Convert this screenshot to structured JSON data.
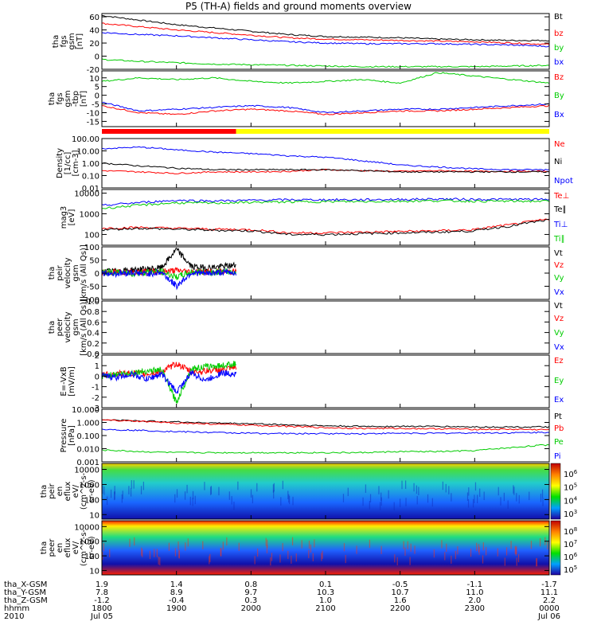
{
  "title": "P5 (TH-A) fields and ground moments overview",
  "chart_data": [
    {
      "type": "line",
      "panel": "fgs_gsm",
      "ylabel": [
        "tha",
        "fgs",
        "gsm",
        "[nT]"
      ],
      "yticks": [
        "60",
        "40",
        "20",
        "0",
        "-20"
      ],
      "ylim": [
        -20,
        65
      ],
      "x": [
        18.0,
        18.5,
        19.0,
        19.5,
        20.0,
        20.5,
        21.0,
        21.5,
        22.0,
        22.5,
        23.0,
        23.5,
        24.0
      ],
      "series": [
        {
          "name": "Bt",
          "color": "#000000",
          "values": [
            62,
            55,
            48,
            43,
            38,
            33,
            30,
            29,
            28,
            26,
            25,
            24,
            24
          ]
        },
        {
          "name": "bz",
          "color": "#ff0000",
          "values": [
            50,
            45,
            40,
            36,
            32,
            28,
            26,
            25,
            24,
            23,
            22,
            20,
            18
          ]
        },
        {
          "name": "by",
          "color": "#00cc00",
          "values": [
            -5,
            -8,
            -10,
            -12,
            -13,
            -14,
            -15,
            -16,
            -16,
            -16,
            -16,
            -15,
            -14
          ]
        },
        {
          "name": "bx",
          "color": "#0000ff",
          "values": [
            36,
            33,
            31,
            28,
            25,
            22,
            20,
            19,
            19,
            19,
            18,
            17,
            15
          ]
        }
      ]
    },
    {
      "type": "line",
      "panel": "fgs_gsm_tbp",
      "ylabel": [
        "tha",
        "fgs",
        "gsm",
        "-tbp",
        "[nT]"
      ],
      "yticks": [
        "10",
        "5",
        "0",
        "-5",
        "-10",
        "-15"
      ],
      "ylim": [
        -18,
        14
      ],
      "x": [
        18.0,
        18.5,
        19.0,
        19.5,
        20.0,
        20.5,
        21.0,
        21.5,
        22.0,
        22.5,
        23.0,
        23.5,
        24.0
      ],
      "series": [
        {
          "name": "Bz",
          "color": "#ff0000",
          "values": [
            -6,
            -10,
            -11,
            -9,
            -8,
            -9,
            -11,
            -10,
            -9,
            -9,
            -8,
            -7,
            -6
          ]
        },
        {
          "name": "By",
          "color": "#00cc00",
          "values": [
            8,
            10,
            9,
            10,
            8,
            7,
            8,
            9,
            7,
            13,
            11,
            9,
            7
          ]
        },
        {
          "name": "Bx",
          "color": "#0000ff",
          "values": [
            -4,
            -9,
            -8,
            -7,
            -6,
            -7,
            -10,
            -9,
            -8,
            -8,
            -7,
            -6,
            -5
          ]
        }
      ]
    },
    {
      "type": "line",
      "panel": "density",
      "yscale": "log",
      "ylabel": [
        "Density",
        "[1/cc]",
        "[cm-3]"
      ],
      "yticks": [
        "100.00",
        "10.00",
        "1.00",
        "0.10",
        "0.01"
      ],
      "ylim": [
        0.01,
        100
      ],
      "x": [
        18.0,
        18.5,
        19.0,
        19.5,
        20.0,
        20.5,
        21.0,
        21.5,
        22.0,
        22.5,
        23.0,
        23.5,
        24.0
      ],
      "series": [
        {
          "name": "Ne",
          "color": "#ff0000",
          "values": [
            0.25,
            0.2,
            0.15,
            0.2,
            0.2,
            0.22,
            0.3,
            0.25,
            0.22,
            0.25,
            0.22,
            0.22,
            0.22
          ]
        },
        {
          "name": "Ni",
          "color": "#000000",
          "values": [
            1.0,
            0.6,
            0.4,
            0.3,
            0.3,
            0.3,
            0.3,
            0.25,
            0.2,
            0.2,
            0.2,
            0.2,
            0.2
          ]
        },
        {
          "name": "Npot",
          "color": "#0000ff",
          "values": [
            15,
            20,
            12,
            8,
            6,
            4,
            3,
            1.5,
            0.7,
            0.5,
            0.35,
            0.3,
            0.3
          ]
        }
      ]
    },
    {
      "type": "line",
      "panel": "temperature",
      "yscale": "log",
      "ylabel": [
        "mag3",
        "[eV]"
      ],
      "yticks": [
        "10000",
        "1000",
        "100"
      ],
      "ylim": [
        30,
        15000
      ],
      "x": [
        18.0,
        18.5,
        19.0,
        19.5,
        20.0,
        20.5,
        21.0,
        21.5,
        22.0,
        22.5,
        23.0,
        23.5,
        24.0
      ],
      "series": [
        {
          "name": "Te⊥",
          "color": "#ff0000",
          "values": [
            200,
            220,
            200,
            180,
            170,
            120,
            120,
            130,
            140,
            150,
            170,
            300,
            550
          ]
        },
        {
          "name": "Te∥",
          "color": "#000000",
          "values": [
            170,
            200,
            180,
            160,
            150,
            100,
            100,
            110,
            120,
            130,
            150,
            260,
            500
          ]
        },
        {
          "name": "Ti⊥",
          "color": "#0000ff",
          "values": [
            2500,
            3500,
            4500,
            4200,
            4500,
            4800,
            4800,
            4800,
            5000,
            5200,
            5000,
            5000,
            5000
          ]
        },
        {
          "name": "Ti∥",
          "color": "#00cc00",
          "values": [
            1800,
            2600,
            3400,
            3300,
            3600,
            3800,
            3900,
            3900,
            4100,
            4300,
            4100,
            4100,
            4100
          ]
        }
      ]
    },
    {
      "type": "line",
      "panel": "peir_velocity",
      "ylabel": [
        "tha",
        "peir",
        "velocity",
        "gsm",
        "[km/s (All Qs)]"
      ],
      "yticks": [
        "100",
        "50",
        "0",
        "-50",
        "-100"
      ],
      "ylim": [
        -100,
        100
      ],
      "x": [
        18.0,
        18.2,
        18.4,
        18.6,
        18.8,
        19.0,
        19.2,
        19.4,
        19.6,
        19.8
      ],
      "series": [
        {
          "name": "Vt",
          "color": "#000000",
          "values": [
            5,
            8,
            12,
            15,
            20,
            90,
            25,
            20,
            25,
            30
          ]
        },
        {
          "name": "Vz",
          "color": "#ff0000",
          "values": [
            3,
            4,
            5,
            4,
            6,
            10,
            5,
            4,
            5,
            6
          ]
        },
        {
          "name": "Vy",
          "color": "#00cc00",
          "values": [
            2,
            3,
            -2,
            4,
            5,
            -15,
            4,
            3,
            5,
            4
          ]
        },
        {
          "name": "Vx",
          "color": "#0000ff",
          "values": [
            0,
            -2,
            2,
            -3,
            3,
            -50,
            2,
            -2,
            3,
            2
          ]
        }
      ]
    },
    {
      "type": "line",
      "panel": "peer_velocity",
      "ylabel": [
        "tha",
        "peer",
        "velocity",
        "gsm",
        "[km/s (All Qs)]"
      ],
      "yticks": [
        "1.0",
        "0.8",
        "0.6",
        "0.4",
        "0.2",
        "0.0"
      ],
      "ylim": [
        0,
        1
      ],
      "legend": [
        "Vt",
        "Vz",
        "Vy",
        "Vx"
      ],
      "series": []
    },
    {
      "type": "line",
      "panel": "efield",
      "ylabel": [
        "E=-VxB",
        "[mV/m]"
      ],
      "yticks": [
        "2",
        "1",
        "0",
        "-1",
        "-2",
        "-3"
      ],
      "ylim": [
        -3,
        2
      ],
      "x": [
        18.0,
        18.2,
        18.4,
        18.6,
        18.8,
        19.0,
        19.2,
        19.4,
        19.6,
        19.8
      ],
      "series": [
        {
          "name": "Ez",
          "color": "#ff0000",
          "values": [
            0.1,
            0.2,
            0.3,
            0.2,
            0.4,
            1.2,
            0.4,
            0.5,
            0.6,
            0.8
          ]
        },
        {
          "name": "Ey",
          "color": "#00cc00",
          "values": [
            0.0,
            0.2,
            0.3,
            0.5,
            0.6,
            -2.5,
            0.7,
            0.9,
            1.0,
            1.2
          ]
        },
        {
          "name": "Ex",
          "color": "#0000ff",
          "values": [
            0.0,
            -0.1,
            0.2,
            -0.3,
            0.2,
            -1.5,
            0.3,
            -0.4,
            0.3,
            0.2
          ]
        }
      ]
    },
    {
      "type": "line",
      "panel": "pressure",
      "yscale": "log",
      "ylabel": [
        "Pressure",
        "[nPa]"
      ],
      "yticks": [
        "10.000",
        "1.000",
        "0.100",
        "0.010",
        "0.001"
      ],
      "ylim": [
        0.001,
        10
      ],
      "x": [
        18.0,
        18.5,
        19.0,
        19.5,
        20.0,
        20.5,
        21.0,
        21.5,
        22.0,
        22.5,
        23.0,
        23.5,
        24.0
      ],
      "series": [
        {
          "name": "Pt",
          "color": "#000000",
          "values": [
            1.6,
            1.3,
            1.1,
            0.9,
            0.8,
            0.65,
            0.55,
            0.5,
            0.5,
            0.5,
            0.45,
            0.45,
            0.45
          ]
        },
        {
          "name": "Pb",
          "color": "#ff0000",
          "values": [
            1.5,
            1.2,
            0.9,
            0.75,
            0.6,
            0.5,
            0.4,
            0.35,
            0.35,
            0.33,
            0.3,
            0.3,
            0.28
          ]
        },
        {
          "name": "Pe",
          "color": "#00cc00",
          "values": [
            0.008,
            0.006,
            0.005,
            0.005,
            0.005,
            0.005,
            0.005,
            0.005,
            0.006,
            0.006,
            0.007,
            0.012,
            0.02
          ]
        },
        {
          "name": "Pi",
          "color": "#0000ff",
          "values": [
            0.3,
            0.25,
            0.2,
            0.17,
            0.15,
            0.14,
            0.14,
            0.14,
            0.15,
            0.15,
            0.16,
            0.16,
            0.18
          ]
        }
      ]
    },
    {
      "type": "heatmap",
      "panel": "peir_spectrogram",
      "yscale": "log",
      "ylabel": [
        "tha",
        "peir",
        "en",
        "eflux",
        "eV/",
        "(cm^2-s-",
        "sr-eV)"
      ],
      "yticks": [
        "10000",
        "1000",
        "100",
        "10"
      ],
      "ylim": [
        5,
        25000
      ],
      "colorbar_ticks": [
        "10^6",
        "10^5",
        "10^4",
        "10^3"
      ]
    },
    {
      "type": "heatmap",
      "panel": "peer_spectrogram",
      "yscale": "log",
      "ylabel": [
        "tha",
        "peer",
        "en",
        "eflux",
        "eV/",
        "(cm^2-s-",
        "sr-eV)"
      ],
      "yticks": [
        "10000",
        "1000",
        "100",
        "10"
      ],
      "ylim": [
        5,
        25000
      ],
      "colorbar_ticks": [
        "10^8",
        "10^7",
        "10^6",
        "10^5"
      ]
    }
  ],
  "quality_bar": {
    "colors": [
      "#ff0000",
      "#ffff00"
    ],
    "switch_fraction": 0.3
  },
  "orbit_rows": [
    {
      "label": "tha_X-GSM",
      "values": [
        "1.9",
        "1.4",
        "0.8",
        "0.1",
        "-0.5",
        "-1.1",
        "-1.7"
      ]
    },
    {
      "label": "tha_Y-GSM",
      "values": [
        "7.8",
        "8.9",
        "9.7",
        "10.3",
        "10.7",
        "11.0",
        "11.1"
      ]
    },
    {
      "label": "tha_Z-GSM",
      "values": [
        "-1.2",
        "-0.4",
        "0.3",
        "1.0",
        "1.6",
        "2.0",
        "2.2"
      ]
    },
    {
      "label": "hhmm",
      "values": [
        "1800",
        "1900",
        "2000",
        "2100",
        "2200",
        "2300",
        "0000"
      ]
    }
  ],
  "year_label": "2010",
  "start_date": "Jul 05",
  "end_date": "Jul 06"
}
